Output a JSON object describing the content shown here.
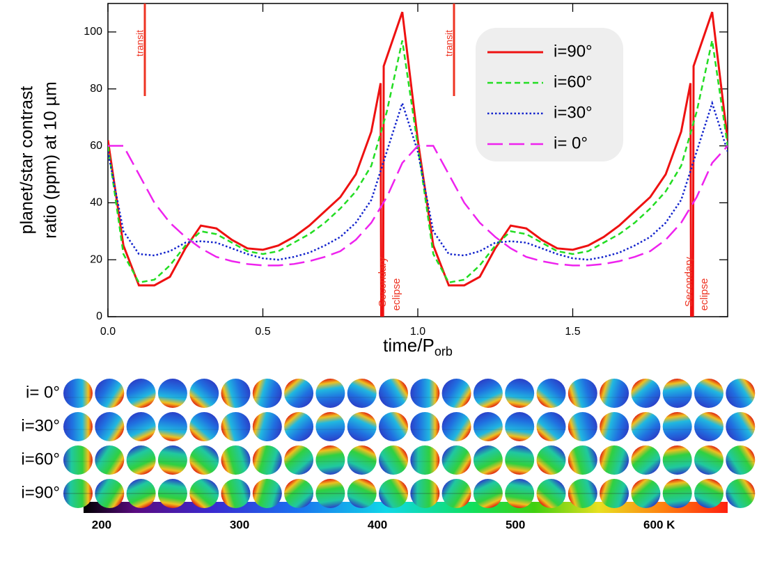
{
  "chart_data": {
    "type": "line",
    "ylabel": [
      "planet/star contrast",
      "ratio (ppm) at 10 µm"
    ],
    "xlabel": "time/P",
    "xlabel_subscript": "orb",
    "xlim": [
      0,
      2
    ],
    "ylim": [
      0,
      110
    ],
    "xticks": [
      {
        "value": 0,
        "label": "0.0"
      },
      0.5,
      {
        "value": 1,
        "label": "1.0"
      },
      1.5
    ],
    "yticks": [
      0,
      20,
      40,
      60,
      80,
      100
    ],
    "legend": "upper right",
    "series": [
      {
        "name": "i=90°",
        "color": "#ee1111",
        "dash": "solid",
        "x": [
          0,
          0.05,
          0.1,
          0.15,
          0.2,
          0.25,
          0.3,
          0.35,
          0.4,
          0.45,
          0.5,
          0.55,
          0.6,
          0.65,
          0.7,
          0.75,
          0.8,
          0.85,
          0.88,
          0.882,
          0.888,
          0.89,
          0.95,
          1,
          1.05,
          1.1,
          1.15,
          1.2,
          1.25,
          1.3,
          1.35,
          1.4,
          1.45,
          1.5,
          1.55,
          1.6,
          1.65,
          1.7,
          1.75,
          1.8,
          1.85,
          1.88,
          1.882,
          1.888,
          1.89,
          1.95,
          2
        ],
        "values": [
          62,
          25,
          11,
          11,
          14,
          24,
          32,
          31,
          27,
          24,
          23.5,
          25,
          28,
          32,
          37,
          42,
          50,
          65,
          82,
          0,
          0,
          88,
          107,
          62,
          25,
          11,
          11,
          14,
          24,
          32,
          31,
          27,
          24,
          23.5,
          25,
          28,
          32,
          37,
          42,
          50,
          65,
          82,
          0,
          0,
          88,
          107,
          62
        ]
      },
      {
        "name": "i=60°",
        "color": "#22dd22",
        "dash": "dashed",
        "x": [
          0,
          0.05,
          0.1,
          0.15,
          0.2,
          0.25,
          0.3,
          0.35,
          0.4,
          0.45,
          0.5,
          0.55,
          0.6,
          0.65,
          0.7,
          0.75,
          0.8,
          0.85,
          0.9,
          0.95,
          1,
          1.05,
          1.1,
          1.15,
          1.2,
          1.25,
          1.3,
          1.35,
          1.4,
          1.45,
          1.5,
          1.55,
          1.6,
          1.65,
          1.7,
          1.75,
          1.8,
          1.85,
          1.9,
          1.95,
          2
        ],
        "values": [
          60,
          22,
          12,
          13,
          18,
          25,
          30,
          29,
          26,
          23,
          22,
          23,
          26,
          29,
          33,
          38,
          44,
          53,
          72,
          97,
          60,
          22,
          12,
          13,
          18,
          25,
          30,
          29,
          26,
          23,
          22,
          23,
          26,
          29,
          33,
          38,
          44,
          53,
          72,
          97,
          60
        ]
      },
      {
        "name": "i=30°",
        "color": "#1122cc",
        "dash": "dotted",
        "x": [
          0,
          0.05,
          0.1,
          0.15,
          0.2,
          0.25,
          0.3,
          0.35,
          0.4,
          0.45,
          0.5,
          0.55,
          0.6,
          0.65,
          0.7,
          0.75,
          0.8,
          0.85,
          0.9,
          0.95,
          1,
          1.05,
          1.1,
          1.15,
          1.2,
          1.25,
          1.3,
          1.35,
          1.4,
          1.45,
          1.5,
          1.55,
          1.6,
          1.65,
          1.7,
          1.75,
          1.8,
          1.85,
          1.9,
          1.95,
          2
        ],
        "values": [
          58,
          30,
          22,
          21.5,
          23,
          26,
          26.5,
          26,
          24,
          22,
          20.5,
          20,
          21,
          22.5,
          25,
          28,
          33,
          41,
          58,
          75,
          58,
          30,
          22,
          21.5,
          23,
          26,
          26.5,
          26,
          24,
          22,
          20.5,
          20,
          21,
          22.5,
          25,
          28,
          33,
          41,
          58,
          75,
          58
        ]
      },
      {
        "name": "i= 0°",
        "color": "#ee22ee",
        "dash": "longdash",
        "x": [
          0,
          0.05,
          0.1,
          0.15,
          0.2,
          0.25,
          0.3,
          0.35,
          0.4,
          0.45,
          0.5,
          0.55,
          0.6,
          0.65,
          0.7,
          0.75,
          0.8,
          0.85,
          0.9,
          0.95,
          1,
          1.05,
          1.1,
          1.15,
          1.2,
          1.25,
          1.3,
          1.35,
          1.4,
          1.45,
          1.5,
          1.55,
          1.6,
          1.65,
          1.7,
          1.75,
          1.8,
          1.85,
          1.9,
          1.95,
          2
        ],
        "values": [
          60,
          60,
          50,
          40,
          33,
          28,
          24,
          21,
          19.5,
          18.5,
          18,
          18,
          18.5,
          19.5,
          21,
          23,
          27,
          33,
          42,
          54,
          60,
          60,
          50,
          40,
          33,
          28,
          24,
          21,
          19.5,
          18.5,
          18,
          18,
          18.5,
          19.5,
          21,
          23,
          27,
          33,
          42,
          54,
          60
        ]
      }
    ],
    "annotations": [
      "transit",
      "transit",
      "Secondary",
      "eclipse",
      "Secondary",
      "eclipse"
    ],
    "globe_rows": [
      "i= 0°",
      "i=30°",
      "i=60°",
      "i=90°"
    ],
    "colorbar": {
      "clim": [
        187,
        654
      ],
      "ticks": [
        200,
        300,
        400,
        500,
        {
          "value": 600,
          "label": "600 K"
        }
      ]
    }
  }
}
